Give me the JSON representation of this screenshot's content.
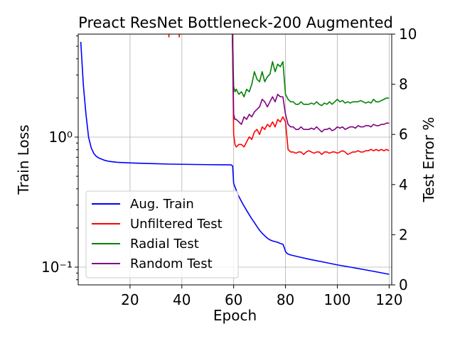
{
  "chart_data": {
    "type": "line",
    "title": "Preact ResNet Bottleneck-200 Augmented",
    "xlabel": "Epoch",
    "ylabel": "Train Loss",
    "y2label": "Test Error %",
    "xlim": [
      0,
      121
    ],
    "ylim": [
      0.073,
      6.2
    ],
    "yscale": "log",
    "y2lim": [
      0,
      10
    ],
    "grid": true,
    "legend_position": "lower-left",
    "x_ticks": [
      20,
      40,
      60,
      80,
      100,
      120
    ],
    "x_tick_labels": [
      "20",
      "40",
      "60",
      "80",
      "100",
      "120"
    ],
    "y_ticks": [
      0.1,
      1.0
    ],
    "y_tick_labels": [
      "10⁻¹",
      "10⁰"
    ],
    "y2_ticks": [
      0,
      2,
      4,
      6,
      8,
      10
    ],
    "y2_tick_labels": [
      "0",
      "2",
      "4",
      "6",
      "8",
      "10"
    ],
    "series": [
      {
        "name": "Aug. Train",
        "color": "#0000ff",
        "axis": "left",
        "x": [
          1,
          2,
          3,
          4,
          5,
          6,
          7,
          8,
          10,
          12,
          15,
          20,
          25,
          30,
          35,
          40,
          45,
          50,
          55,
          59,
          59.6,
          60,
          61,
          62,
          63,
          64,
          65,
          66,
          67,
          68,
          69,
          70,
          71,
          72,
          73,
          74,
          75,
          76,
          77,
          78,
          79,
          79.6,
          80,
          80.5,
          81,
          82,
          85,
          90,
          95,
          100,
          105,
          110,
          115,
          120
        ],
        "y": [
          5.4,
          2.5,
          1.5,
          1.0,
          0.83,
          0.75,
          0.71,
          0.69,
          0.665,
          0.65,
          0.64,
          0.633,
          0.628,
          0.624,
          0.62,
          0.618,
          0.616,
          0.614,
          0.613,
          0.612,
          0.6,
          0.44,
          0.39,
          0.35,
          0.32,
          0.295,
          0.273,
          0.253,
          0.235,
          0.22,
          0.205,
          0.192,
          0.182,
          0.174,
          0.167,
          0.162,
          0.159,
          0.157,
          0.155,
          0.152,
          0.15,
          0.14,
          0.132,
          0.128,
          0.126,
          0.124,
          0.12,
          0.114,
          0.109,
          0.104,
          0.1,
          0.096,
          0.092,
          0.088
        ]
      },
      {
        "name": "Unfiltered Test",
        "color": "#ff0000",
        "axis": "right",
        "x": [
          35,
          35,
          39,
          39,
          59.5,
          60,
          60.5,
          61,
          62,
          63,
          64,
          65,
          66,
          67,
          68,
          69,
          70,
          71,
          72,
          73,
          74,
          75,
          76,
          77,
          78,
          79,
          80,
          81,
          82,
          83,
          84,
          85,
          86,
          87,
          88,
          89,
          90,
          91,
          92,
          93,
          94,
          95,
          96,
          97,
          98,
          99,
          100,
          101,
          102,
          103,
          104,
          105,
          106,
          107,
          108,
          109,
          110,
          111,
          112,
          113,
          114,
          115,
          116,
          117,
          118,
          119,
          120
        ],
        "y": [
          10,
          9.87,
          10,
          9.87,
          10,
          6.0,
          5.6,
          5.5,
          5.6,
          5.6,
          5.5,
          5.7,
          5.9,
          5.8,
          6.1,
          6.2,
          6.0,
          6.3,
          6.2,
          6.4,
          6.3,
          6.5,
          6.3,
          6.6,
          6.5,
          6.7,
          6.5,
          5.4,
          5.3,
          5.3,
          5.25,
          5.3,
          5.3,
          5.2,
          5.3,
          5.35,
          5.3,
          5.25,
          5.3,
          5.3,
          5.2,
          5.3,
          5.3,
          5.25,
          5.3,
          5.3,
          5.25,
          5.3,
          5.35,
          5.3,
          5.2,
          5.25,
          5.3,
          5.3,
          5.35,
          5.3,
          5.3,
          5.35,
          5.35,
          5.4,
          5.35,
          5.4,
          5.35,
          5.4,
          5.35,
          5.4,
          5.35
        ]
      },
      {
        "name": "Radial Test",
        "color": "#008000",
        "axis": "right",
        "x": [
          59.5,
          60,
          60.5,
          61,
          62,
          63,
          64,
          65,
          66,
          67,
          68,
          69,
          70,
          71,
          72,
          73,
          74,
          75,
          76,
          77,
          78,
          79,
          80,
          81,
          82,
          83,
          84,
          85,
          86,
          87,
          88,
          89,
          90,
          91,
          92,
          93,
          94,
          95,
          96,
          97,
          98,
          99,
          100,
          101,
          102,
          103,
          104,
          105,
          106,
          107,
          108,
          109,
          110,
          111,
          112,
          113,
          114,
          115,
          116,
          117,
          118,
          119,
          120
        ],
        "y": [
          10,
          7.9,
          7.7,
          7.8,
          7.6,
          7.7,
          7.5,
          7.8,
          7.7,
          8.0,
          8.5,
          8.2,
          8.1,
          8.5,
          8.1,
          8.3,
          8.4,
          8.9,
          8.5,
          8.8,
          8.7,
          8.9,
          7.6,
          7.4,
          7.3,
          7.3,
          7.2,
          7.2,
          7.3,
          7.2,
          7.2,
          7.2,
          7.25,
          7.2,
          7.3,
          7.2,
          7.15,
          7.25,
          7.2,
          7.3,
          7.2,
          7.3,
          7.4,
          7.3,
          7.35,
          7.25,
          7.3,
          7.25,
          7.3,
          7.3,
          7.3,
          7.35,
          7.3,
          7.25,
          7.3,
          7.25,
          7.4,
          7.3,
          7.3,
          7.35,
          7.4,
          7.45,
          7.45
        ]
      },
      {
        "name": "Random Test",
        "color": "#800080",
        "axis": "right",
        "x": [
          59.5,
          60,
          60.5,
          61,
          62,
          63,
          64,
          65,
          66,
          67,
          68,
          69,
          70,
          71,
          72,
          73,
          74,
          75,
          76,
          77,
          78,
          79,
          80,
          81,
          82,
          83,
          84,
          85,
          86,
          87,
          88,
          89,
          90,
          91,
          92,
          93,
          94,
          95,
          96,
          97,
          98,
          99,
          100,
          101,
          102,
          103,
          104,
          105,
          106,
          107,
          108,
          109,
          110,
          111,
          112,
          113,
          114,
          115,
          116,
          117,
          118,
          119,
          120
        ],
        "y": [
          10,
          6.8,
          6.6,
          6.6,
          6.5,
          6.4,
          6.7,
          6.6,
          6.8,
          6.7,
          6.9,
          7.0,
          7.1,
          7.4,
          7.3,
          7.1,
          7.3,
          7.5,
          7.3,
          7.6,
          7.5,
          7.5,
          6.8,
          6.4,
          6.3,
          6.3,
          6.2,
          6.2,
          6.3,
          6.2,
          6.2,
          6.2,
          6.25,
          6.2,
          6.3,
          6.2,
          6.1,
          6.2,
          6.2,
          6.25,
          6.15,
          6.2,
          6.3,
          6.25,
          6.3,
          6.2,
          6.25,
          6.3,
          6.3,
          6.25,
          6.35,
          6.3,
          6.3,
          6.35,
          6.35,
          6.3,
          6.4,
          6.35,
          6.35,
          6.4,
          6.4,
          6.45,
          6.45
        ]
      }
    ]
  }
}
